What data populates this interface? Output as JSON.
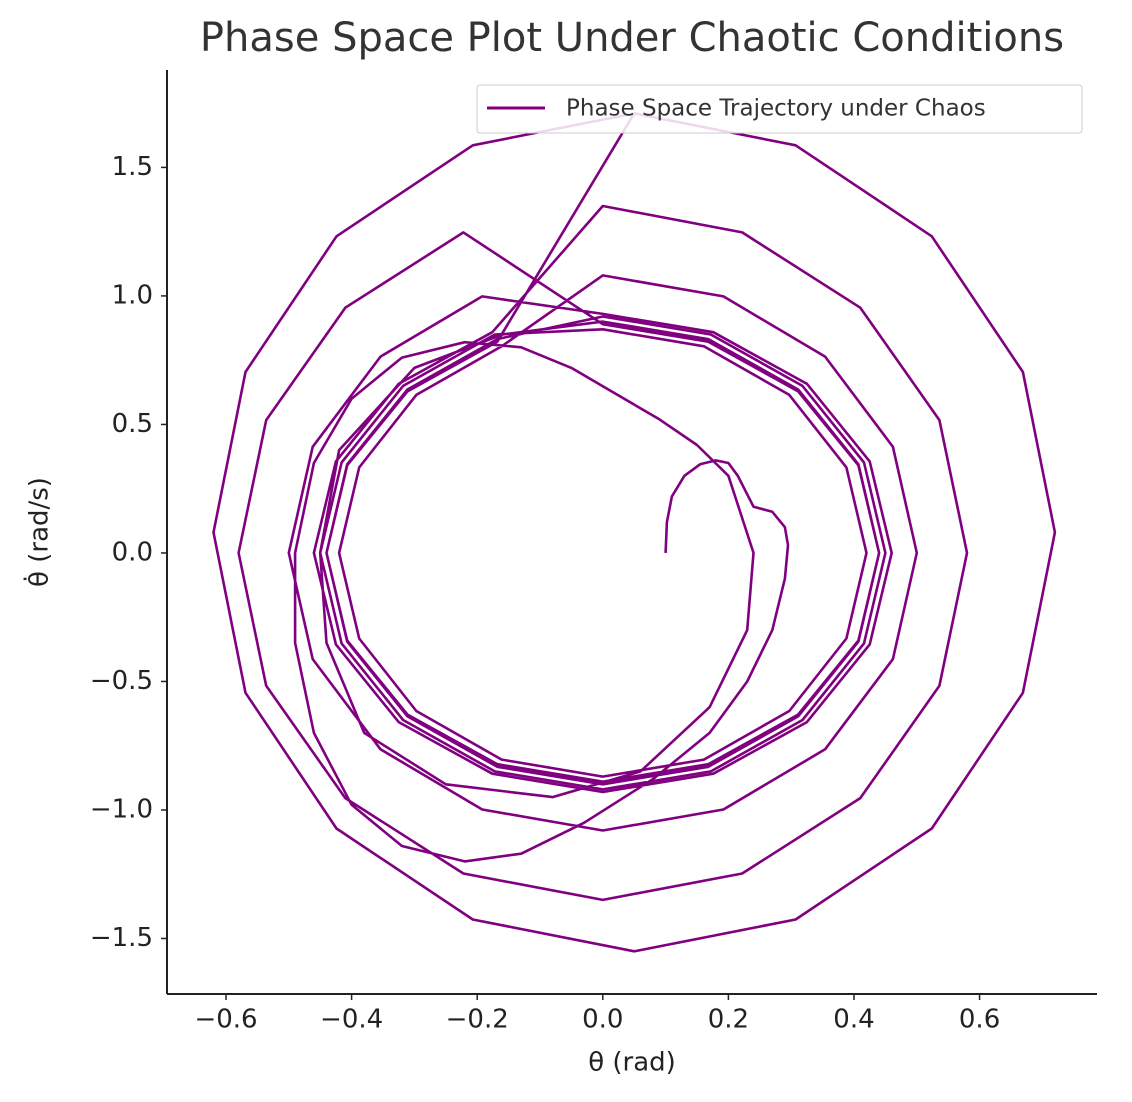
{
  "chart_data": {
    "type": "line",
    "title": "Phase Space Plot Under Chaotic Conditions",
    "xlabel": "θ (rad)",
    "ylabel": "θ̇ (rad/s)",
    "legend": "upper right",
    "xlim": [
      -0.694,
      0.787
    ],
    "ylim": [
      -1.716,
      1.879
    ],
    "xticks": [
      {
        "value": -0.6,
        "label": "−0.6"
      },
      {
        "value": -0.4,
        "label": "−0.4"
      },
      {
        "value": -0.2,
        "label": "−0.2"
      },
      {
        "value": 0,
        "label": "0.0"
      },
      0.2,
      0.4,
      0.6
    ],
    "yticks": [
      {
        "value": -1.5,
        "label": "−1.5"
      },
      {
        "value": -1,
        "label": "−1.0"
      },
      {
        "value": -0.5,
        "label": "−0.5"
      },
      {
        "value": 0,
        "label": "0.0"
      },
      0.5,
      {
        "value": 1,
        "label": "1.0"
      },
      1.5
    ],
    "x": [
      0.1,
      0.102,
      0.11,
      0.13,
      0.155,
      0.18,
      0.2,
      0.215,
      0.24,
      0.27,
      0.29,
      0.295,
      0.29,
      0.27,
      0.23,
      0.17,
      0.08,
      -0.03,
      -0.13,
      -0.22,
      -0.32,
      -0.4,
      -0.46,
      -0.49,
      -0.49,
      -0.46,
      -0.4,
      -0.32,
      -0.22,
      -0.13,
      -0.05,
      0.02,
      0.09,
      0.15,
      0.2,
      0.24,
      0.23,
      0.17,
      0.06,
      -0.08,
      -0.25,
      -0.38,
      -0.44,
      -0.45,
      -0.42,
      -0.3,
      -0.16,
      0,
      0.168,
      0.311,
      0.407,
      0.44,
      0.407,
      0.311,
      0.168,
      0,
      -0.168,
      -0.311,
      -0.407,
      -0.44,
      -0.407,
      -0.311,
      -0.168,
      0,
      0.172,
      0.318,
      0.416,
      0.45,
      0.416,
      0.318,
      0.172,
      0,
      -0.172,
      -0.318,
      -0.416,
      -0.45,
      -0.416,
      -0.318,
      -0.172,
      0,
      0.161,
      0.297,
      0.388,
      0.42,
      0.388,
      0.297,
      0.161,
      0,
      -0.161,
      -0.297,
      -0.388,
      -0.42,
      -0.388,
      -0.297,
      -0.161,
      0,
      0.192,
      0.354,
      0.462,
      0.5,
      0.462,
      0.354,
      0.192,
      0,
      -0.192,
      -0.354,
      -0.462,
      -0.5,
      -0.462,
      -0.354,
      -0.192,
      0,
      0.176,
      0.325,
      0.425,
      0.46,
      0.425,
      0.325,
      0.176,
      0,
      -0.176,
      -0.325,
      -0.425,
      -0.46,
      -0.425,
      -0.325,
      -0.176,
      0,
      0.222,
      0.41,
      0.536,
      0.58,
      0.536,
      0.41,
      0.222,
      0,
      -0.222,
      -0.41,
      -0.536,
      -0.58,
      -0.536,
      -0.41,
      -0.222,
      0,
      0.168,
      0.311,
      0.407,
      0.44,
      0.407,
      0.311,
      0.168,
      0,
      -0.168,
      -0.311,
      -0.407,
      -0.44,
      -0.407,
      -0.311,
      -0.168,
      0.05,
      0.307,
      0.524,
      0.669,
      0.72,
      0.669,
      0.524,
      0.307,
      0.05,
      -0.207,
      -0.424,
      -0.569,
      -0.62,
      -0.569,
      -0.424,
      -0.207,
      0.05
    ],
    "series": [
      {
        "name": "Phase Space Trajectory under Chaos",
        "color": "#800080",
        "values": [
          0,
          0.12,
          0.22,
          0.3,
          0.345,
          0.36,
          0.35,
          0.3,
          0.18,
          0.16,
          0.1,
          0.03,
          -0.1,
          -0.3,
          -0.5,
          -0.7,
          -0.88,
          -1.05,
          -1.17,
          -1.2,
          -1.14,
          -0.98,
          -0.7,
          -0.35,
          0,
          0.35,
          0.6,
          0.76,
          0.82,
          0.8,
          0.72,
          0.62,
          0.52,
          0.42,
          0.3,
          0,
          -0.3,
          -0.6,
          -0.85,
          -0.95,
          -0.9,
          -0.7,
          -0.35,
          0,
          0.4,
          0.72,
          0.85,
          0.9,
          0.832,
          0.636,
          0.345,
          0,
          -0.345,
          -0.636,
          -0.832,
          -0.9,
          -0.832,
          -0.636,
          -0.345,
          0,
          0.345,
          0.636,
          0.832,
          0.92,
          0.85,
          0.65,
          0.352,
          0,
          -0.352,
          -0.65,
          -0.85,
          -0.92,
          -0.85,
          -0.65,
          -0.352,
          0,
          0.352,
          0.65,
          0.85,
          0.87,
          0.804,
          0.615,
          0.333,
          0,
          -0.333,
          -0.615,
          -0.804,
          -0.87,
          -0.804,
          -0.615,
          -0.333,
          0,
          0.333,
          0.615,
          0.804,
          1.08,
          0.998,
          0.764,
          0.413,
          0,
          -0.413,
          -0.764,
          -0.998,
          -1.08,
          -0.998,
          -0.764,
          -0.413,
          0,
          0.413,
          0.764,
          0.998,
          0.93,
          0.859,
          0.658,
          0.356,
          0,
          -0.356,
          -0.658,
          -0.859,
          -0.93,
          -0.859,
          -0.658,
          -0.356,
          0,
          0.356,
          0.658,
          0.859,
          1.35,
          1.247,
          0.954,
          0.517,
          0,
          -0.517,
          -0.954,
          -1.247,
          -1.35,
          -1.247,
          -0.954,
          -0.517,
          0,
          0.517,
          0.954,
          1.247,
          0.89,
          0.822,
          0.629,
          0.341,
          0,
          -0.341,
          -0.629,
          -0.822,
          -0.89,
          -0.822,
          -0.629,
          -0.341,
          0,
          0.341,
          0.629,
          0.822,
          1.71,
          1.586,
          1.232,
          0.704,
          0.08,
          -0.544,
          -1.072,
          -1.426,
          -1.55,
          -1.426,
          -1.072,
          -0.544,
          0.08,
          0.704,
          1.232,
          1.586,
          1.71
        ]
      }
    ]
  }
}
